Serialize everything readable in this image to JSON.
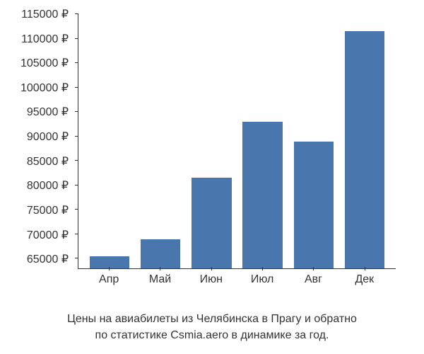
{
  "chart": {
    "type": "bar",
    "background_color": "#ffffff",
    "axis_color": "#333333",
    "bar_color": "#4a76ae",
    "label_color": "#333333",
    "currency_symbol": "₽",
    "y_axis": {
      "min": 63000,
      "max": 115000,
      "ticks": [
        65000,
        70000,
        75000,
        80000,
        85000,
        90000,
        95000,
        100000,
        105000,
        110000,
        115000
      ],
      "fontsize": 16
    },
    "x_axis": {
      "labels": [
        "Апр",
        "Май",
        "Июн",
        "Июл",
        "Авг",
        "Дек"
      ],
      "fontsize": 16
    },
    "values": [
      65500,
      69000,
      81500,
      93000,
      89000,
      111500
    ],
    "bar_width": 0.78
  },
  "caption": {
    "line1": "Цены на авиабилеты из Челябинска в Прагу и обратно",
    "line2": "по статистике Csmia.aero в динамике за год.",
    "fontsize": 16
  }
}
